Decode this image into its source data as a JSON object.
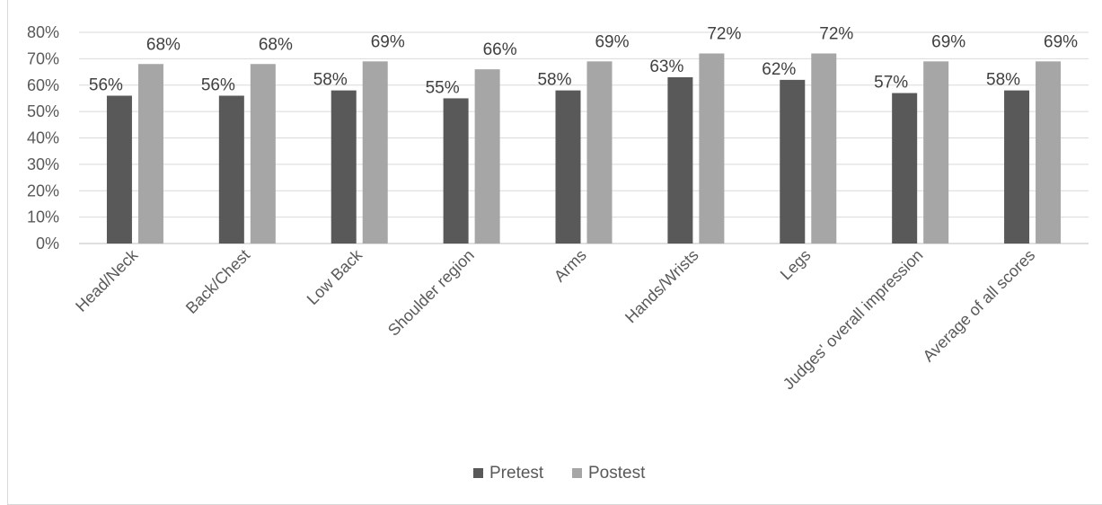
{
  "chart_data": {
    "type": "bar",
    "title": "",
    "xlabel": "",
    "ylabel": "",
    "ylim": [
      0,
      80
    ],
    "y_ticks": [
      "0%",
      "10%",
      "20%",
      "30%",
      "40%",
      "50%",
      "60%",
      "70%",
      "80%"
    ],
    "grid": true,
    "legend_position": "bottom",
    "categories": [
      "Head/Neck",
      "Back/Chest",
      "Low Back",
      "Shoulder region",
      "Arms",
      "Hands/Wrists",
      "Legs",
      "Judges' overall impression",
      "Average of all scores"
    ],
    "series": [
      {
        "name": "Pretest",
        "color": "#595959",
        "values": [
          56,
          56,
          58,
          55,
          58,
          63,
          62,
          57,
          58
        ],
        "labels": [
          "56%",
          "56%",
          "58%",
          "55%",
          "58%",
          "63%",
          "62%",
          "57%",
          "58%"
        ]
      },
      {
        "name": "Postest",
        "color": "#a6a6a6",
        "values": [
          68,
          68,
          69,
          66,
          69,
          72,
          72,
          69,
          69
        ],
        "labels": [
          "68%",
          "68%",
          "69%",
          "66%",
          "69%",
          "72%",
          "72%",
          "69%",
          "69%"
        ]
      }
    ]
  }
}
